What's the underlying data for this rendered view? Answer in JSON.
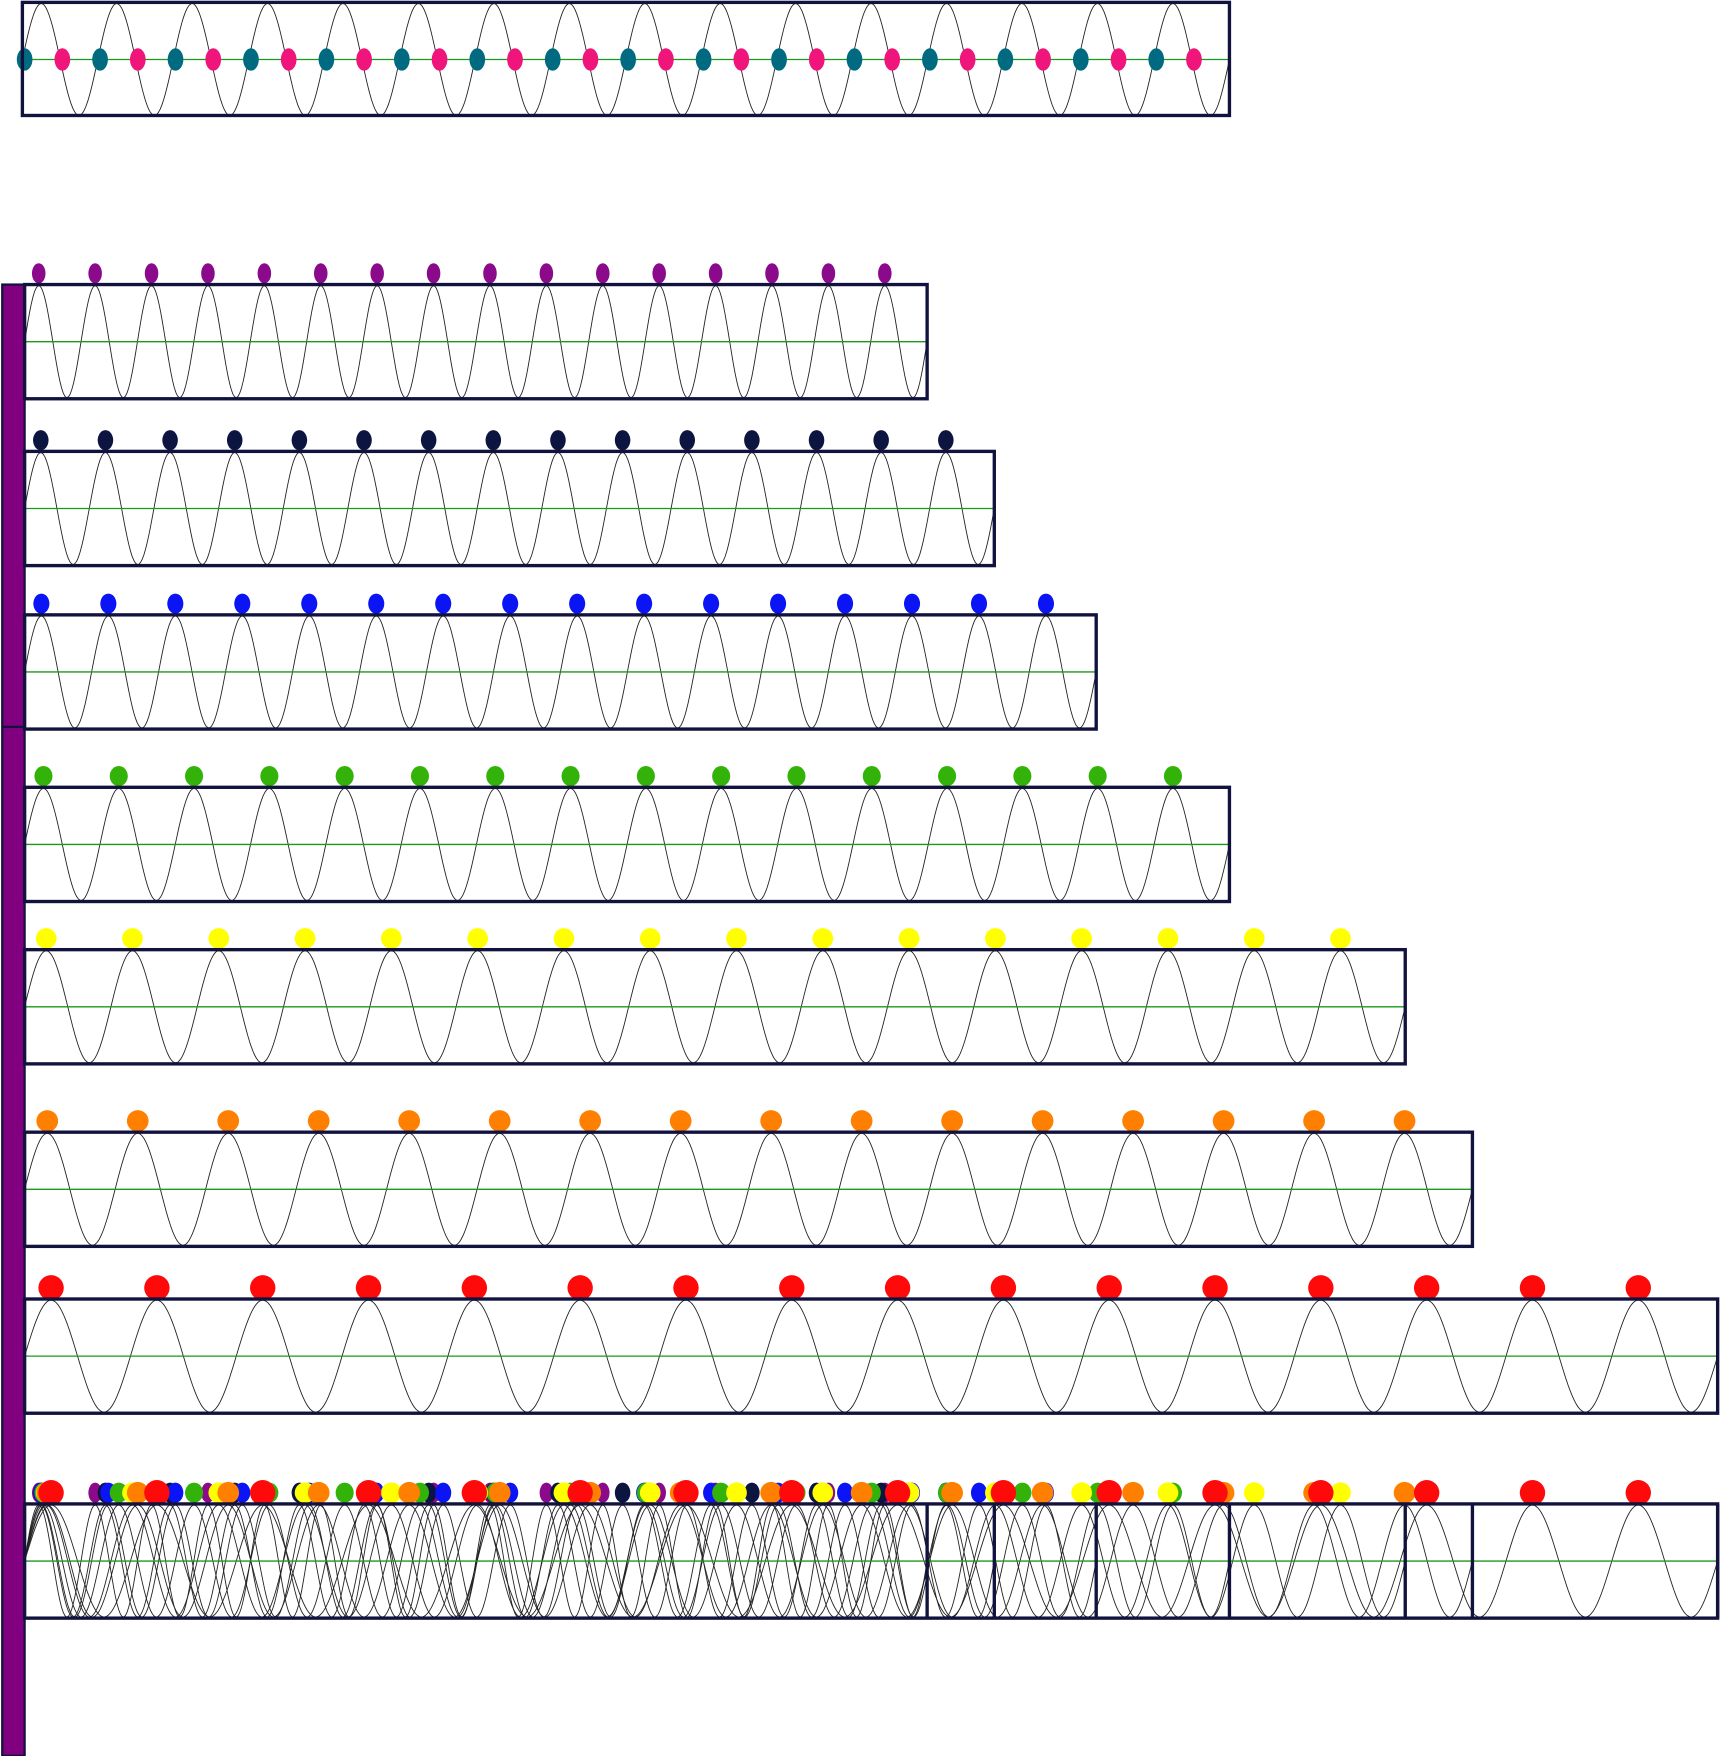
{
  "top_wave": {
    "cycles": 16,
    "colors": [
      "#006b80",
      "#f0157a"
    ]
  },
  "waves": [
    {
      "color": "#8b0a8b",
      "cycles": 16
    },
    {
      "color": "#0c1440",
      "cycles": 15
    },
    {
      "color": "#0a14f5",
      "cycles": 16
    },
    {
      "color": "#33b30a",
      "cycles": 16
    },
    {
      "color": "#ffff00",
      "cycles": 16
    },
    {
      "color": "#ff8000",
      "cycles": 16
    },
    {
      "color": "#ff0a0a",
      "cycles": 16
    }
  ]
}
